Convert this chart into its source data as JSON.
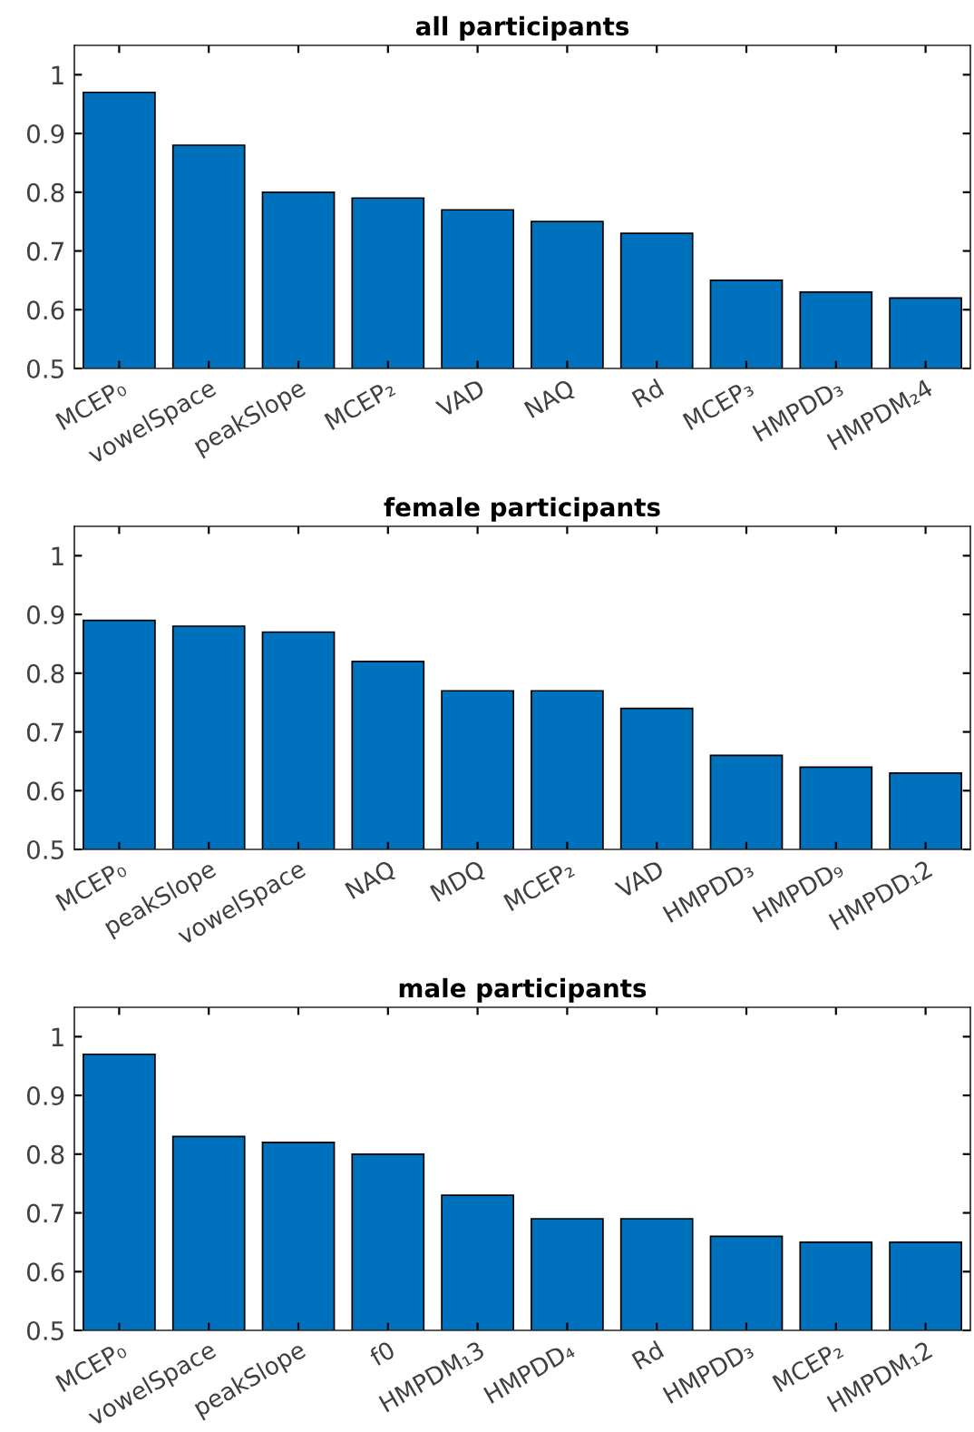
{
  "chart_data": [
    {
      "type": "bar",
      "title": "all participants",
      "categories": [
        "MCEP₀",
        "vowelSpace",
        "peakSlope",
        "MCEP₂",
        "VAD",
        "NAQ",
        "Rd",
        "MCEP₃",
        "HMPDD₃",
        "HMPDM₂4"
      ],
      "values": [
        0.97,
        0.88,
        0.8,
        0.79,
        0.77,
        0.75,
        0.73,
        0.65,
        0.63,
        0.62
      ],
      "color": "#0072bd",
      "ylim": [
        0.5,
        1.05
      ],
      "yticks": [
        0.5,
        0.6,
        0.7,
        0.8,
        0.9,
        1
      ],
      "grid": false
    },
    {
      "type": "bar",
      "title": "female participants",
      "categories": [
        "MCEP₀",
        "peakSlope",
        "vowelSpace",
        "NAQ",
        "MDQ",
        "MCEP₂",
        "VAD",
        "HMPDD₃",
        "HMPDD₉",
        "HMPDD₁2"
      ],
      "values": [
        0.89,
        0.88,
        0.87,
        0.82,
        0.77,
        0.77,
        0.74,
        0.66,
        0.64,
        0.63
      ],
      "color": "#0072bd",
      "ylim": [
        0.5,
        1.05
      ],
      "yticks": [
        0.5,
        0.6,
        0.7,
        0.8,
        0.9,
        1
      ],
      "grid": false
    },
    {
      "type": "bar",
      "title": "male participants",
      "categories": [
        "MCEP₀",
        "vowelSpace",
        "peakSlope",
        "f0",
        "HMPDM₁3",
        "HMPDD₄",
        "Rd",
        "HMPDD₃",
        "MCEP₂",
        "HMPDM₁2"
      ],
      "values": [
        0.97,
        0.83,
        0.82,
        0.8,
        0.73,
        0.69,
        0.69,
        0.66,
        0.65,
        0.65
      ],
      "color": "#0072bd",
      "ylim": [
        0.5,
        1.05
      ],
      "yticks": [
        0.5,
        0.6,
        0.7,
        0.8,
        0.9,
        1
      ],
      "grid": false
    }
  ]
}
